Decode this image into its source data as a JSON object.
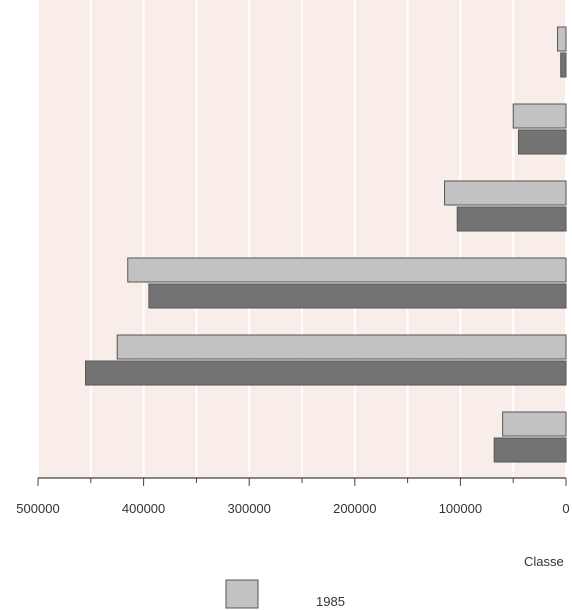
{
  "chart_data": {
    "type": "bar",
    "orientation": "horizontal",
    "x_direction": "reversed",
    "xlim": [
      0,
      500000
    ],
    "xticks": [
      500000,
      400000,
      300000,
      200000,
      100000,
      0
    ],
    "xlabel": "Classe",
    "grid": true,
    "legend": "bottom-center",
    "colors": {
      "plot_background": "#f8ede9",
      "gridline": "#ffffff",
      "series_1985": "#c2c2c2",
      "series_2": "#737373"
    },
    "categories": [
      "",
      "",
      "",
      "",
      "",
      ""
    ],
    "series": [
      {
        "name": "1985",
        "values": [
          8000,
          50000,
          115000,
          415000,
          425000,
          60000
        ]
      },
      {
        "name": "",
        "values": [
          5000,
          45000,
          103000,
          395000,
          455000,
          68000
        ]
      }
    ]
  }
}
